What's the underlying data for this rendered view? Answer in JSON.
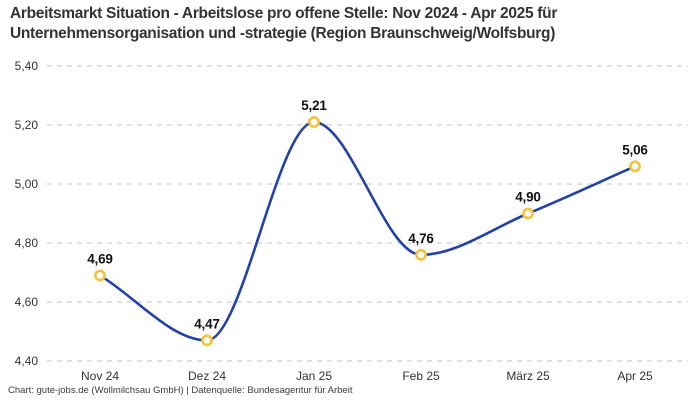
{
  "title": {
    "line1": "Arbeitsmarkt Situation - Arbeitslose pro offene Stelle: Nov 2024 - Apr 2025 für",
    "line2": "Unternehmensorganisation und -strategie (Region Braunschweig/Wolfsburg)"
  },
  "footer": {
    "attribution": "Chart: gute-jobs.de (Wollmilchsau GmbH) | Datenquelle: Bundesagentur für Arbeit"
  },
  "chart_data": {
    "type": "line",
    "title": "Arbeitsmarkt Situation - Arbeitslose pro offene Stelle: Nov 2024 - Apr 2025 für Unternehmensorganisation und -strategie (Region Braunschweig/Wolfsburg)",
    "categories": [
      "Nov 24",
      "Dez 24",
      "Jan 25",
      "Feb 25",
      "März 25",
      "Apr 25"
    ],
    "values": [
      4.69,
      4.47,
      5.21,
      4.76,
      4.9,
      5.06
    ],
    "value_labels": [
      "4,69",
      "4,47",
      "5,21",
      "4,76",
      "4,90",
      "5,06"
    ],
    "xlabel": "",
    "ylabel": "",
    "ylim": [
      4.4,
      5.4
    ],
    "yticks": [
      4.4,
      4.6,
      4.8,
      5.0,
      5.2,
      5.4
    ],
    "ytick_labels": [
      "4,40",
      "4,60",
      "4,80",
      "5,00",
      "5,20",
      "5,40"
    ],
    "grid": "horizontal-dashed",
    "legend_position": "none",
    "curve": "monotone",
    "colors": {
      "line": "#2342a5",
      "marker_stroke": "#f5c33b",
      "marker_fill": "#ffffff",
      "grid": "#c4c4c4",
      "tick_text": "#333333",
      "point_label_text": "#111111"
    }
  }
}
